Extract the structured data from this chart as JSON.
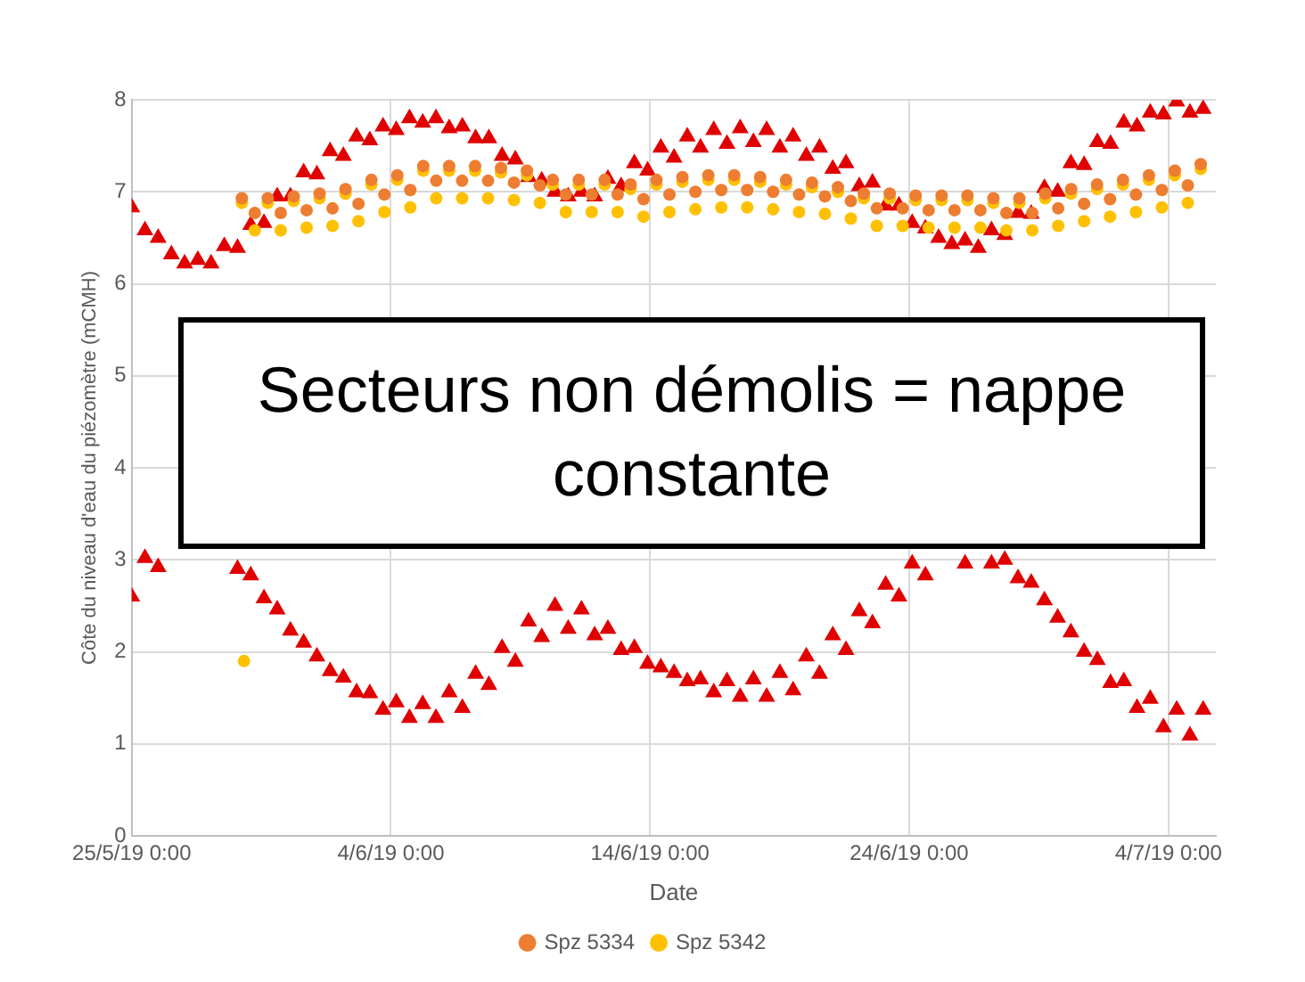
{
  "chart_data": {
    "type": "scatter",
    "xlabel": "Date",
    "ylabel": "Côte du niveau d'eau du piézomètre (mCMH)",
    "annotations": [
      "Secteurs non démolis = nappe constante"
    ],
    "xlim": [
      "2019-05-25",
      "2019-07-05T20:00"
    ],
    "xticks": [
      {
        "value": "2019-05-25",
        "label": "25/5/19 0:00"
      },
      {
        "value": "2019-06-04",
        "label": "4/6/19 0:00"
      },
      {
        "value": "2019-06-14",
        "label": "14/6/19 0:00"
      },
      {
        "value": "2019-06-24",
        "label": "24/6/19 0:00"
      },
      {
        "value": "2019-07-04",
        "label": "4/7/19 0:00"
      }
    ],
    "ylim": [
      0,
      8
    ],
    "yticks": [
      0,
      1,
      2,
      3,
      4,
      5,
      6,
      7,
      8
    ],
    "grid": true,
    "legend": "bottom",
    "x": [
      "2019-05-25T00:00",
      "2019-05-25T12:15",
      "2019-05-26T00:30",
      "2019-05-26T12:45",
      "2019-05-27T01:00",
      "2019-05-27T13:15",
      "2019-05-28T01:30",
      "2019-05-28T13:45",
      "2019-05-29T02:00",
      "2019-05-29T14:15",
      "2019-05-30T02:30",
      "2019-05-30T14:45",
      "2019-05-31T03:00",
      "2019-05-31T15:15",
      "2019-06-01T03:30",
      "2019-06-01T15:45",
      "2019-06-02T04:00",
      "2019-06-02T16:15",
      "2019-06-03T04:30",
      "2019-06-03T16:45",
      "2019-06-04T05:00",
      "2019-06-04T17:15",
      "2019-06-05T05:30",
      "2019-06-05T17:45",
      "2019-06-06T06:00",
      "2019-06-06T18:15",
      "2019-06-07T06:30",
      "2019-06-07T18:45",
      "2019-06-08T07:00",
      "2019-06-08T19:15",
      "2019-06-09T07:30",
      "2019-06-09T19:45",
      "2019-06-10T08:00",
      "2019-06-10T20:15",
      "2019-06-11T08:30",
      "2019-06-11T20:45",
      "2019-06-12T09:00",
      "2019-06-12T21:15",
      "2019-06-13T09:30",
      "2019-06-13T21:45",
      "2019-06-14T10:00",
      "2019-06-14T22:15",
      "2019-06-15T10:30",
      "2019-06-15T22:45",
      "2019-06-16T11:00",
      "2019-06-16T23:15",
      "2019-06-17T11:30",
      "2019-06-17T23:45",
      "2019-06-18T12:00",
      "2019-06-19T00:15",
      "2019-06-19T12:30",
      "2019-06-20T00:45",
      "2019-06-20T13:00",
      "2019-06-21T01:15",
      "2019-06-21T13:30",
      "2019-06-22T01:45",
      "2019-06-22T14:00",
      "2019-06-23T02:15",
      "2019-06-23T14:30",
      "2019-06-24T02:45",
      "2019-06-24T15:00",
      "2019-06-25T03:15",
      "2019-06-25T15:30",
      "2019-06-26T03:45",
      "2019-06-26T16:00",
      "2019-06-27T04:15",
      "2019-06-27T16:30",
      "2019-06-28T04:45",
      "2019-06-28T17:00",
      "2019-06-29T05:15",
      "2019-06-29T17:30",
      "2019-06-30T05:45",
      "2019-06-30T18:00",
      "2019-07-01T06:15",
      "2019-07-01T18:30",
      "2019-07-02T06:45",
      "2019-07-02T19:00",
      "2019-07-03T07:15",
      "2019-07-03T19:30",
      "2019-07-04T07:45",
      "2019-07-04T20:00",
      "2019-07-05T08:15"
    ],
    "series": [
      {
        "name": "Spz 5334",
        "color": "#ed7d31",
        "marker": "circle",
        "x": [
          "2019-05-29T06:00",
          "2019-05-29T18:00",
          "2019-05-30T06:00",
          "2019-05-30T18:00",
          "2019-05-31T06:00",
          "2019-05-31T18:00",
          "2019-06-01T06:00",
          "2019-06-01T18:00",
          "2019-06-02T06:00",
          "2019-06-02T18:00",
          "2019-06-03T06:00",
          "2019-06-03T18:00",
          "2019-06-04T06:00",
          "2019-06-04T18:00",
          "2019-06-05T06:00",
          "2019-06-05T18:00",
          "2019-06-06T06:00",
          "2019-06-06T18:00",
          "2019-06-07T06:00",
          "2019-06-07T18:00",
          "2019-06-08T06:00",
          "2019-06-08T18:00",
          "2019-06-09T06:00",
          "2019-06-09T18:00",
          "2019-06-10T06:00",
          "2019-06-10T18:00",
          "2019-06-11T06:00",
          "2019-06-11T18:00",
          "2019-06-12T06:00",
          "2019-06-12T18:00",
          "2019-06-13T06:00",
          "2019-06-13T18:00",
          "2019-06-14T06:00",
          "2019-06-14T18:00",
          "2019-06-15T06:00",
          "2019-06-15T18:00",
          "2019-06-16T06:00",
          "2019-06-16T18:00",
          "2019-06-17T06:00",
          "2019-06-17T18:00",
          "2019-06-18T06:00",
          "2019-06-18T18:00",
          "2019-06-19T06:00",
          "2019-06-19T18:00",
          "2019-06-20T06:00",
          "2019-06-20T18:00",
          "2019-06-21T06:00",
          "2019-06-21T18:00",
          "2019-06-22T06:00",
          "2019-06-22T18:00",
          "2019-06-23T06:00",
          "2019-06-23T18:00",
          "2019-06-24T06:00",
          "2019-06-24T18:00",
          "2019-06-25T06:00",
          "2019-06-25T18:00",
          "2019-06-26T06:00",
          "2019-06-26T18:00",
          "2019-06-27T06:00",
          "2019-06-27T18:00",
          "2019-06-28T06:00",
          "2019-06-28T18:00",
          "2019-06-29T06:00",
          "2019-06-29T18:00",
          "2019-06-30T06:00",
          "2019-06-30T18:00",
          "2019-07-01T06:00",
          "2019-07-01T18:00",
          "2019-07-02T06:00",
          "2019-07-02T18:00",
          "2019-07-03T06:00",
          "2019-07-03T18:00",
          "2019-07-04T06:00",
          "2019-07-04T18:00",
          "2019-07-05T06:00"
        ],
        "values": [
          6.93,
          6.77,
          6.93,
          6.77,
          6.95,
          6.8,
          6.98,
          6.82,
          7.03,
          6.87,
          7.13,
          6.97,
          7.18,
          7.02,
          7.28,
          7.12,
          7.28,
          7.12,
          7.28,
          7.12,
          7.26,
          7.1,
          7.23,
          7.07,
          7.13,
          6.97,
          7.13,
          6.97,
          7.13,
          6.97,
          7.08,
          6.92,
          7.13,
          6.97,
          7.16,
          7.0,
          7.18,
          7.02,
          7.18,
          7.02,
          7.16,
          7.0,
          7.13,
          6.97,
          7.1,
          6.95,
          7.05,
          6.9,
          6.98,
          6.82,
          6.98,
          6.82,
          6.96,
          6.8,
          6.96,
          6.8,
          6.96,
          6.8,
          6.93,
          6.77,
          6.93,
          6.77,
          6.98,
          6.82,
          7.03,
          6.87,
          7.08,
          6.92,
          7.13,
          6.97,
          7.18,
          7.02,
          7.23,
          7.07,
          7.3
        ]
      },
      {
        "name": "Spz 5342",
        "color": "#ffc000",
        "marker": "circle",
        "x": [
          "2019-05-29T08:00",
          "2019-05-29T06:00",
          "2019-05-29T18:00",
          "2019-05-30T06:00",
          "2019-05-30T18:00",
          "2019-05-31T06:00",
          "2019-05-31T18:00",
          "2019-06-01T06:00",
          "2019-06-01T18:00",
          "2019-06-02T06:00",
          "2019-06-02T18:00",
          "2019-06-03T06:00",
          "2019-06-03T18:00",
          "2019-06-04T06:00",
          "2019-06-04T18:00",
          "2019-06-05T06:00",
          "2019-06-05T18:00",
          "2019-06-06T06:00",
          "2019-06-06T18:00",
          "2019-06-07T06:00",
          "2019-06-07T18:00",
          "2019-06-08T06:00",
          "2019-06-08T18:00",
          "2019-06-09T06:00",
          "2019-06-09T18:00",
          "2019-06-10T06:00",
          "2019-06-10T18:00",
          "2019-06-11T06:00",
          "2019-06-11T18:00",
          "2019-06-12T06:00",
          "2019-06-12T18:00",
          "2019-06-13T06:00",
          "2019-06-13T18:00",
          "2019-06-14T06:00",
          "2019-06-14T18:00",
          "2019-06-15T06:00",
          "2019-06-15T18:00",
          "2019-06-16T06:00",
          "2019-06-16T18:00",
          "2019-06-17T06:00",
          "2019-06-17T18:00",
          "2019-06-18T06:00",
          "2019-06-18T18:00",
          "2019-06-19T06:00",
          "2019-06-19T18:00",
          "2019-06-20T06:00",
          "2019-06-20T18:00",
          "2019-06-21T06:00",
          "2019-06-21T18:00",
          "2019-06-22T06:00",
          "2019-06-22T18:00",
          "2019-06-23T06:00",
          "2019-06-23T18:00",
          "2019-06-24T06:00",
          "2019-06-24T18:00",
          "2019-06-25T06:00",
          "2019-06-25T18:00",
          "2019-06-26T06:00",
          "2019-06-26T18:00",
          "2019-06-27T06:00",
          "2019-06-27T18:00",
          "2019-06-28T06:00",
          "2019-06-28T18:00",
          "2019-06-29T06:00",
          "2019-06-29T18:00",
          "2019-06-30T06:00",
          "2019-06-30T18:00",
          "2019-07-01T06:00",
          "2019-07-01T18:00",
          "2019-07-02T06:00",
          "2019-07-02T18:00",
          "2019-07-03T06:00",
          "2019-07-03T18:00",
          "2019-07-04T06:00",
          "2019-07-04T18:00",
          "2019-07-05T06:00"
        ],
        "values": [
          1.9,
          6.88,
          6.58,
          6.88,
          6.58,
          6.9,
          6.61,
          6.93,
          6.63,
          6.98,
          6.68,
          7.08,
          6.78,
          7.13,
          6.83,
          7.23,
          6.93,
          7.23,
          6.93,
          7.23,
          6.93,
          7.21,
          6.91,
          7.18,
          6.88,
          7.08,
          6.78,
          7.08,
          6.78,
          7.08,
          6.78,
          7.03,
          6.73,
          7.08,
          6.78,
          7.11,
          6.81,
          7.13,
          6.83,
          7.13,
          6.83,
          7.11,
          6.81,
          7.08,
          6.78,
          7.05,
          6.76,
          7.0,
          6.71,
          6.93,
          6.63,
          6.93,
          6.63,
          6.91,
          6.61,
          6.91,
          6.61,
          6.91,
          6.61,
          6.88,
          6.58,
          6.88,
          6.58,
          6.93,
          6.63,
          6.98,
          6.68,
          7.03,
          6.73,
          7.08,
          6.78,
          7.13,
          6.83,
          7.18,
          6.88,
          7.25
        ]
      },
      {
        "color": "#e00000",
        "marker": "triangle",
        "values": [
          6.83,
          6.58,
          6.5,
          6.32,
          6.22,
          6.26,
          6.22,
          6.41,
          6.39,
          6.64,
          6.66,
          6.95,
          6.95,
          7.21,
          7.19,
          7.44,
          7.39,
          7.6,
          7.56,
          7.71,
          7.67,
          7.8,
          7.75,
          7.8,
          7.69,
          7.71,
          7.58,
          7.58,
          7.39,
          7.35,
          7.16,
          7.12,
          7.0,
          6.95,
          7.0,
          6.95,
          7.14,
          7.06,
          7.31,
          7.23,
          7.48,
          7.37,
          7.6,
          7.48,
          7.67,
          7.52,
          7.69,
          7.54,
          7.67,
          7.48,
          7.6,
          7.39,
          7.48,
          7.25,
          7.31,
          7.06,
          7.1,
          6.85,
          6.85,
          6.66,
          6.6,
          6.5,
          6.43,
          6.47,
          6.39,
          6.58,
          6.53,
          6.77,
          6.76,
          7.04,
          7.0,
          7.31,
          7.29,
          7.54,
          7.52,
          7.75,
          7.71,
          7.86,
          7.84,
          7.98,
          7.86,
          7.9
        ]
      },
      {
        "color": "#e00000",
        "marker": "triangle",
        "values": [
          2.6,
          3.02,
          2.92,
          null,
          null,
          null,
          null,
          null,
          2.9,
          2.83,
          2.58,
          2.46,
          2.23,
          2.1,
          1.95,
          1.79,
          1.72,
          1.56,
          1.55,
          1.37,
          1.45,
          1.28,
          1.43,
          1.28,
          1.56,
          1.39,
          1.76,
          1.64,
          2.04,
          1.89,
          2.33,
          2.16,
          2.5,
          2.25,
          2.46,
          2.18,
          2.25,
          2.02,
          2.04,
          1.87,
          1.83,
          1.77,
          1.68,
          1.7,
          1.56,
          1.68,
          1.51,
          1.7,
          1.51,
          1.77,
          1.58,
          1.95,
          1.76,
          2.18,
          2.02,
          2.44,
          2.31,
          2.73,
          2.6,
          2.96,
          2.83,
          null,
          null,
          2.96,
          null,
          2.96,
          3.0,
          2.8,
          2.75,
          2.56,
          2.37,
          2.21,
          2.0,
          1.91,
          1.66,
          1.68,
          1.39,
          1.49,
          1.18,
          1.37,
          1.09,
          1.37
        ]
      }
    ]
  }
}
